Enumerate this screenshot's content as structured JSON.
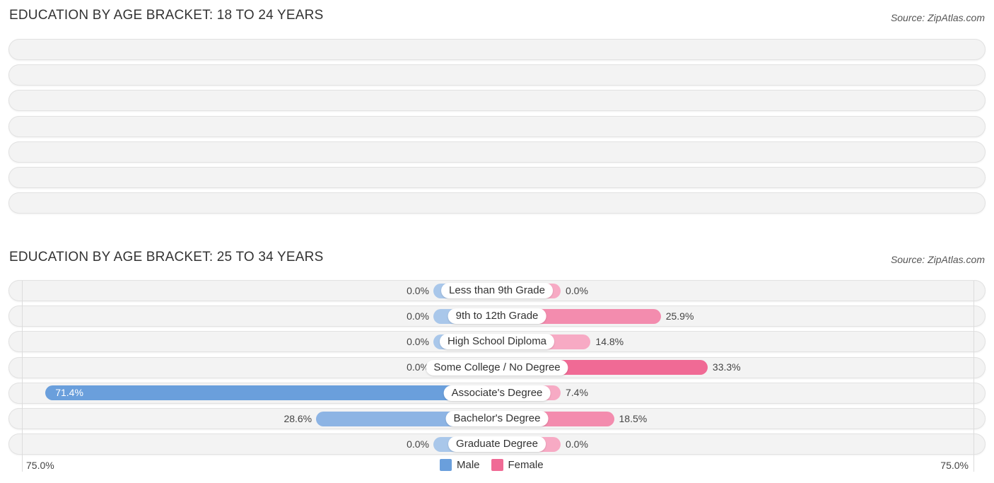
{
  "charts": [
    {
      "title": "EDUCATION BY AGE BRACKET: 18 TO 24 YEARS",
      "source": "Source: ZipAtlas.com",
      "row_count": 7
    },
    {
      "title": "EDUCATION BY AGE BRACKET: 25 TO 34 YEARS",
      "source": "Source: ZipAtlas.com"
    }
  ],
  "chart_data": [
    {
      "type": "bar",
      "orientation": "horizontal-diverging",
      "title": "EDUCATION BY AGE BRACKET: 18 TO 24 YEARS",
      "categories": [],
      "series": [],
      "note": "Seven empty rows, no labels or values shown"
    },
    {
      "type": "bar",
      "orientation": "horizontal-diverging",
      "title": "EDUCATION BY AGE BRACKET: 25 TO 34 YEARS",
      "categories": [
        "Less than 9th Grade",
        "9th to 12th Grade",
        "High School Diploma",
        "Some College / No Degree",
        "Associate's Degree",
        "Bachelor's Degree",
        "Graduate Degree"
      ],
      "series": [
        {
          "name": "Male",
          "color": "#6a9fdc",
          "values": [
            0.0,
            0.0,
            0.0,
            0.0,
            71.4,
            28.6,
            0.0
          ],
          "labels": [
            "0.0%",
            "0.0%",
            "0.0%",
            "0.0%",
            "71.4%",
            "28.6%",
            "0.0%"
          ]
        },
        {
          "name": "Female",
          "color": "#f06a95",
          "values": [
            0.0,
            25.9,
            14.8,
            33.3,
            7.4,
            18.5,
            0.0
          ],
          "labels": [
            "0.0%",
            "25.9%",
            "14.8%",
            "33.3%",
            "7.4%",
            "18.5%",
            "0.0%"
          ]
        }
      ],
      "xlim": [
        -75,
        75
      ],
      "axis_labels": {
        "left": "75.0%",
        "right": "75.0%"
      },
      "legend": [
        "Male",
        "Female"
      ],
      "legend_position": "bottom-center"
    }
  ]
}
